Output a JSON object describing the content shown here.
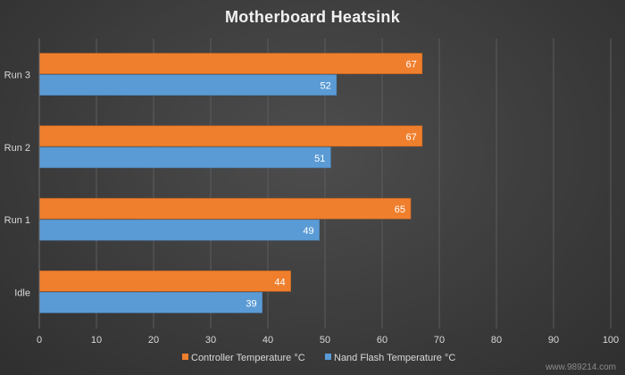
{
  "chart_data": {
    "type": "bar",
    "orientation": "horizontal",
    "title": "Motherboard Heatsink",
    "categories": [
      "Idle",
      "Run 1",
      "Run 2",
      "Run 3"
    ],
    "series": [
      {
        "name": "Controller Temperature °C",
        "values": [
          44,
          65,
          67,
          67
        ],
        "color": "#f07f2d"
      },
      {
        "name": "Nand Flash Temperature °C",
        "values": [
          39,
          49,
          51,
          52
        ],
        "color": "#5b9bd5"
      }
    ],
    "xlim": [
      0,
      100
    ],
    "x_ticks": [
      0,
      10,
      20,
      30,
      40,
      50,
      60,
      70,
      80,
      90,
      100
    ],
    "grid": true,
    "legend_position": "bottom-right",
    "data_labels": true
  },
  "watermark": "www.989214.com"
}
